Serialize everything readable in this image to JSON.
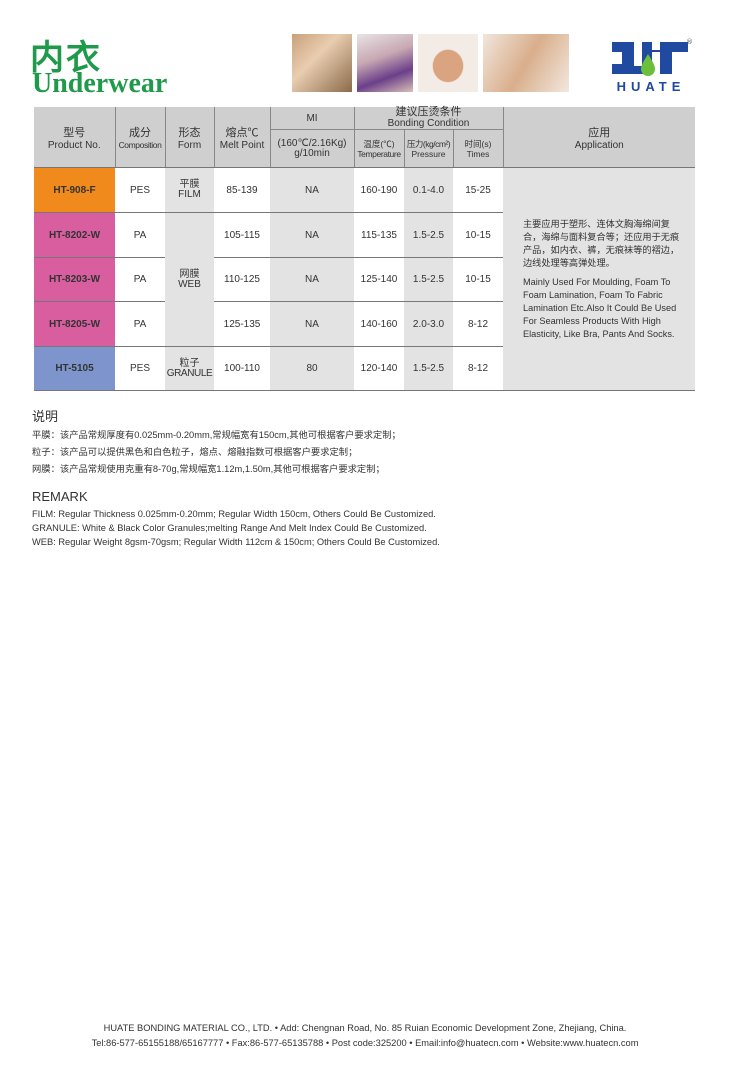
{
  "header": {
    "title_cn": "内衣",
    "title_en": "Underwear",
    "logo_text": "HUATE",
    "logo_mark": "HT",
    "registered": "®"
  },
  "colors": {
    "title_green": "#1e9a4a",
    "logo_blue": "#1f4aa0",
    "row_orange": "#f08a1c",
    "row_pink": "#d95ea0",
    "row_blue": "#7d95cc"
  },
  "table": {
    "headers": {
      "product": {
        "cn": "型号",
        "en": "Product No."
      },
      "composition": {
        "cn": "成分",
        "en": "Composition"
      },
      "form": {
        "cn": "形态",
        "en": "Form"
      },
      "melt": {
        "cn": "熔点℃",
        "en": "Melt Point"
      },
      "mi": {
        "top": "MI",
        "sub": "(160℃/2.16Kg) g/10min"
      },
      "bonding": {
        "cn": "建议压烫条件",
        "en": "Bonding Condition"
      },
      "temp": {
        "cn": "温度(℃)",
        "en": "Temperature"
      },
      "pressure": {
        "cn": "压力(kg/cm²)",
        "en": "Pressure"
      },
      "times": {
        "cn": "时间(s)",
        "en": "Times"
      },
      "application": {
        "cn": "应用",
        "en": "Application"
      }
    },
    "rows": [
      {
        "product": "HT-908-F",
        "composition": "PES",
        "form_cn": "平膜",
        "form_en": "FILM",
        "melt": "85-139",
        "mi": "NA",
        "temp": "160-190",
        "pressure": "0.1-4.0",
        "times": "15-25"
      },
      {
        "product": "HT-8202-W",
        "composition": "PA",
        "form_cn": "网膜",
        "form_en": "WEB",
        "melt": "105-115",
        "mi": "NA",
        "temp": "115-135",
        "pressure": "1.5-2.5",
        "times": "10-15"
      },
      {
        "product": "HT-8203-W",
        "composition": "PA",
        "melt": "110-125",
        "mi": "NA",
        "temp": "125-140",
        "pressure": "1.5-2.5",
        "times": "10-15"
      },
      {
        "product": "HT-8205-W",
        "composition": "PA",
        "melt": "125-135",
        "mi": "NA",
        "temp": "140-160",
        "pressure": "2.0-3.0",
        "times": "8-12"
      },
      {
        "product": "HT-5105",
        "composition": "PES",
        "form_cn": "粒子",
        "form_en": "GRANULE",
        "melt": "100-110",
        "mi": "80",
        "temp": "120-140",
        "pressure": "1.5-2.5",
        "times": "8-12"
      }
    ],
    "application": {
      "cn": "主要应用于塑形、连体文胸海绵间复合，海绵与面料复合等；还应用于无痕产品，如内衣、裤，无痕袜等的褶边，边线处理等高弹处理。",
      "en": "Mainly Used For Moulding, Foam To Foam Lamination, Foam To Fabric Lamination Etc.Also It Could Be Used For Seamless Products With High Elasticity, Like Bra, Pants And Socks."
    }
  },
  "notes": {
    "title_cn": "说明",
    "lines_cn": [
      "平膜：该产品常规厚度有0.025mm-0.20mm,常规幅宽有150cm,其他可根据客户要求定制；",
      "粒子：该产品可以提供黑色和白色粒子，熔点、熔融指数可根据客户要求定制；",
      "网膜：该产品常规使用克重有8-70g,常规幅宽1.12m,1.50m,其他可根据客户要求定制；"
    ],
    "title_en": "REMARK",
    "lines_en": [
      "FILM: Regular Thickness 0.025mm-0.20mm; Regular Width 150cm, Others Could Be Customized.",
      "GRANULE:  White & Black Color Granules;melting Range And Melt Index Could Be Customized.",
      "WEB: Regular Weight 8gsm-70gsm; Regular Width 112cm & 150cm;  Others Could Be Customized."
    ]
  },
  "footer": {
    "line1": "HUATE BONDING MATERIAL CO., LTD. •  Add: Chengnan Road, No. 85 Ruian Economic Development Zone, Zhejiang, China.",
    "line2": "Tel:86-577-65155188/65167777 • Fax:86-577-65135788 • Post code:325200 • Email:info@huatecn.com • Website:www.huatecn.com"
  }
}
